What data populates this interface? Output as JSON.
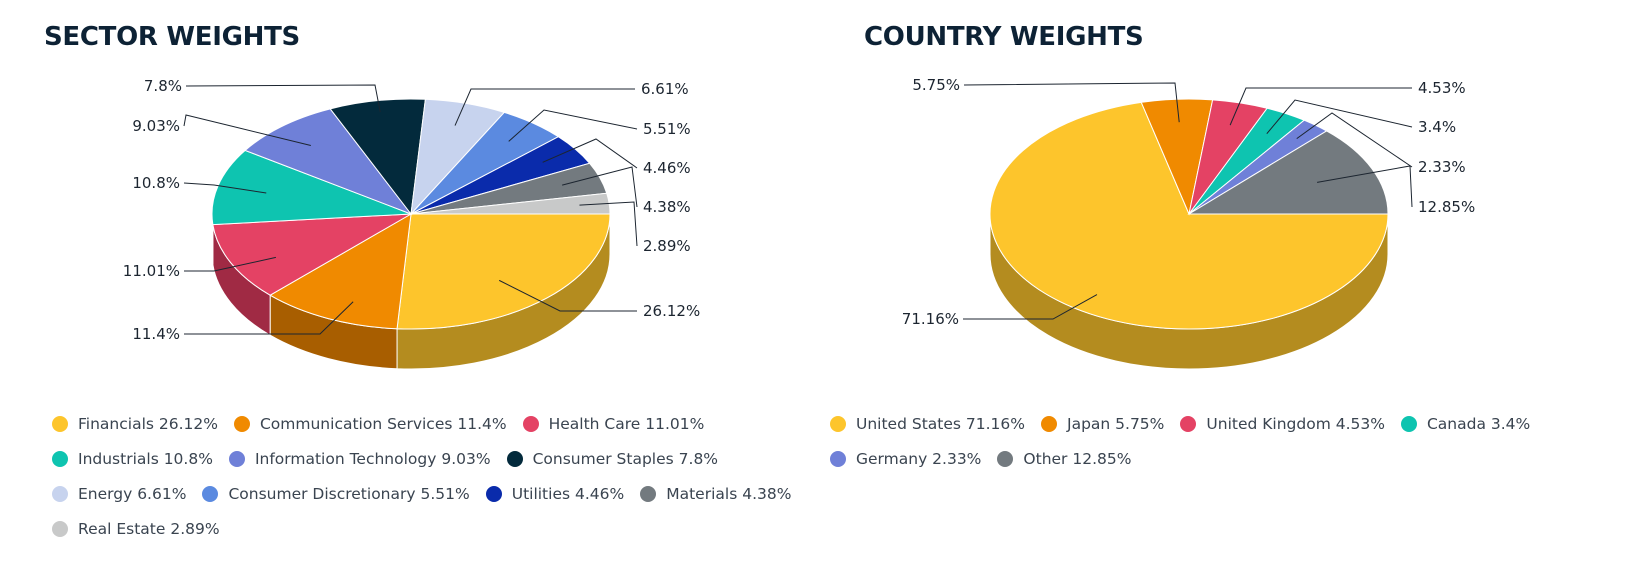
{
  "chart_data": [
    {
      "type": "pie",
      "title": "SECTOR WEIGHTS",
      "legend": "bottom",
      "slices": [
        {
          "label": "Financials",
          "value": 26.12,
          "display": "26.12%",
          "legend": "Financials 26.12%",
          "color": "#fdc52c",
          "side": "#b48c1f"
        },
        {
          "label": "Communication Services",
          "value": 11.4,
          "display": "11.4%",
          "legend": "Communication Services 11.4%",
          "color": "#f08a00",
          "side": "#a85e00"
        },
        {
          "label": "Health Care",
          "value": 11.01,
          "display": "11.01%",
          "legend": "Health Care 11.01%",
          "color": "#e44264",
          "side": "#a02a44"
        },
        {
          "label": "Industrials",
          "value": 10.8,
          "display": "10.8%",
          "legend": "Industrials 10.8%",
          "color": "#0ec4b0",
          "side": "#098a7c"
        },
        {
          "label": "Information Technology",
          "value": 9.03,
          "display": "9.03%",
          "legend": "Information Technology 9.03%",
          "color": "#6f80d8",
          "side": "#4e5a99"
        },
        {
          "label": "Consumer Staples",
          "value": 7.8,
          "display": "7.8%",
          "legend": "Consumer Staples 7.8%",
          "color": "#032a3c",
          "side": "#021c29"
        },
        {
          "label": "Energy",
          "value": 6.61,
          "display": "6.61%",
          "legend": "Energy 6.61%",
          "color": "#c7d3ee",
          "side": "#8c95a8"
        },
        {
          "label": "Consumer Discretionary",
          "value": 5.51,
          "display": "5.51%",
          "legend": "Consumer Discretionary 5.51%",
          "color": "#5b8ae0",
          "side": "#40619e"
        },
        {
          "label": "Utilities",
          "value": 4.46,
          "display": "4.46%",
          "legend": "Utilities 4.46%",
          "color": "#0a2bab",
          "side": "#071e78"
        },
        {
          "label": "Materials",
          "value": 4.38,
          "display": "4.38%",
          "legend": "Materials 4.38%",
          "color": "#737a7f",
          "side": "#51565a"
        },
        {
          "label": "Real Estate",
          "value": 2.89,
          "display": "2.89%",
          "legend": "Real Estate 2.89%",
          "color": "#c8c9c9",
          "side": "#8d8e8e"
        }
      ]
    },
    {
      "type": "pie",
      "title": "COUNTRY WEIGHTS",
      "legend": "bottom",
      "slices": [
        {
          "label": "United States",
          "value": 71.16,
          "display": "71.16%",
          "legend": "United States 71.16%",
          "color": "#fdc52c",
          "side": "#b48c1f"
        },
        {
          "label": "Japan",
          "value": 5.75,
          "display": "5.75%",
          "legend": "Japan 5.75%",
          "color": "#f08a00",
          "side": "#a85e00"
        },
        {
          "label": "United Kingdom",
          "value": 4.53,
          "display": "4.53%",
          "legend": "United Kingdom 4.53%",
          "color": "#e44264",
          "side": "#a02a44"
        },
        {
          "label": "Canada",
          "value": 3.4,
          "display": "3.4%",
          "legend": "Canada 3.4%",
          "color": "#0ec4b0",
          "side": "#098a7c"
        },
        {
          "label": "Germany",
          "value": 2.33,
          "display": "2.33%",
          "legend": "Germany 2.33%",
          "color": "#6f80d8",
          "side": "#4e5a99"
        },
        {
          "label": "Other",
          "value": 12.85,
          "display": "12.85%",
          "legend": "Other 12.85%",
          "color": "#737a7f",
          "side": "#51565a"
        }
      ]
    }
  ]
}
